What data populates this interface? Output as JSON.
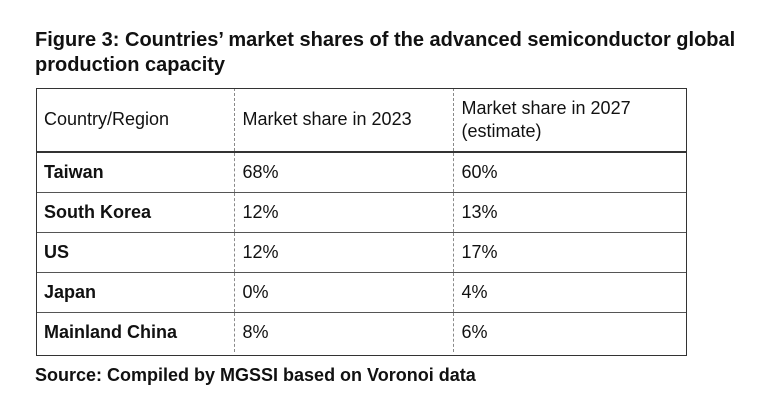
{
  "title": "Figure 3: Countries’ market shares of the advanced semiconductor global production capacity",
  "table": {
    "headers": {
      "country": "Country/Region",
      "share_2023": "Market share in 2023",
      "share_2027_line1": "Market share in 2027",
      "share_2027_line2": "(estimate)"
    },
    "rows": [
      {
        "country": "Taiwan",
        "share_2023": "68%",
        "share_2027": "60%"
      },
      {
        "country": "South Korea",
        "share_2023": "12%",
        "share_2027": "13%"
      },
      {
        "country": "US",
        "share_2023": "12%",
        "share_2027": "17%"
      },
      {
        "country": "Japan",
        "share_2023": "0%",
        "share_2027": "4%"
      },
      {
        "country": "Mainland China",
        "share_2023": "8%",
        "share_2027": "6%"
      }
    ]
  },
  "source": "Source: Compiled by MGSSI based on Voronoi data"
}
